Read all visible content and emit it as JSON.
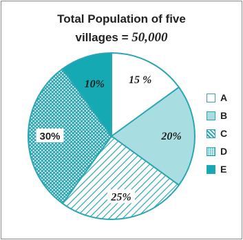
{
  "chart_data": {
    "type": "pie",
    "title_line1": "Total Population of five",
    "title_line2_prefix": "villages = ",
    "title_line2_value": "50,000",
    "slices": [
      {
        "name": "A",
        "value": 15,
        "label": "15 %",
        "pattern": "blank"
      },
      {
        "name": "B",
        "value": 20,
        "label": "20%",
        "pattern": "light"
      },
      {
        "name": "C",
        "value": 25,
        "label": "25%",
        "pattern": "hatch"
      },
      {
        "name": "D",
        "value": 30,
        "label": "30%",
        "pattern": "dots"
      },
      {
        "name": "E",
        "value": 10,
        "label": "10%",
        "pattern": "solid"
      }
    ],
    "legend_position": "right",
    "colors": {
      "stroke": "#2aa7b2",
      "light": "#a8dde1",
      "solid": "#14a9b3",
      "blank": "#ffffff"
    }
  }
}
